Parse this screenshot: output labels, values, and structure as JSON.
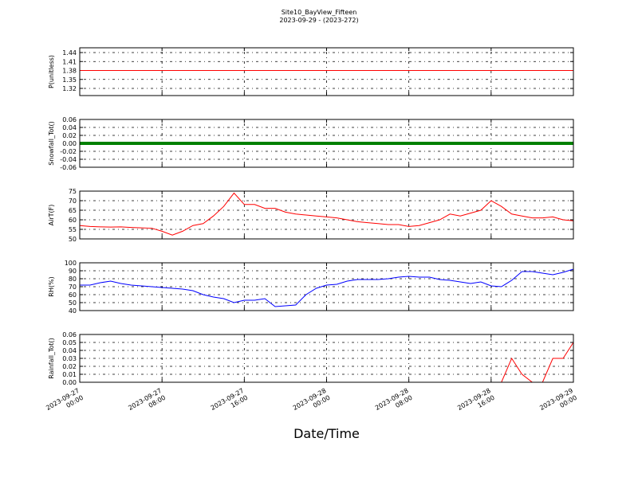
{
  "title": "Site10_BayView_Fifteen",
  "subtitle": "2023-09-29 - (2023-272)",
  "chart_data": [
    {
      "type": "line",
      "ylabel": "P(unitless)",
      "color": "#ff0000",
      "grid": true,
      "xlim": [
        "2023-09-27 00:00",
        "2023-09-29 00:00"
      ],
      "xticks": [
        "2023-09-27 00:00",
        "2023-09-27 08:00",
        "2023-09-27 16:00",
        "2023-09-28 00:00",
        "2023-09-28 08:00",
        "2023-09-28 16:00",
        "2023-09-29 00:00"
      ],
      "ylim": [
        1.296,
        1.456
      ],
      "yticks": [
        1.32,
        1.35,
        1.38,
        1.41,
        1.44
      ],
      "x": [
        "2023-09-27 00:00",
        "2023-09-29 00:00"
      ],
      "values": [
        1.38,
        1.38
      ]
    },
    {
      "type": "line",
      "ylabel": "Snowfall_Tot()",
      "color": "#008000",
      "grid": true,
      "xlim": [
        "2023-09-27 00:00",
        "2023-09-29 00:00"
      ],
      "xticks": [
        "2023-09-27 00:00",
        "2023-09-27 08:00",
        "2023-09-27 16:00",
        "2023-09-28 00:00",
        "2023-09-28 08:00",
        "2023-09-28 16:00",
        "2023-09-29 00:00"
      ],
      "ylim": [
        -0.06,
        0.06
      ],
      "yticks": [
        -0.06,
        -0.04,
        -0.02,
        0.0,
        0.02,
        0.04,
        0.06
      ],
      "x": [
        "2023-09-27 00:00",
        "2023-09-29 00:00"
      ],
      "values": [
        0,
        0
      ]
    },
    {
      "type": "line",
      "ylabel": "AirT(F)",
      "color": "#ff0000",
      "grid": true,
      "xlim": [
        "2023-09-27 00:00",
        "2023-09-29 00:00"
      ],
      "xticks": [
        "2023-09-27 00:00",
        "2023-09-27 08:00",
        "2023-09-27 16:00",
        "2023-09-28 00:00",
        "2023-09-28 08:00",
        "2023-09-28 16:00",
        "2023-09-29 00:00"
      ],
      "ylim": [
        50,
        75
      ],
      "yticks": [
        50,
        55,
        60,
        65,
        70,
        75
      ],
      "x": [
        "2023-09-27 00:00",
        "2023-09-27 01:00",
        "2023-09-27 02:00",
        "2023-09-27 03:00",
        "2023-09-27 04:00",
        "2023-09-27 05:00",
        "2023-09-27 06:00",
        "2023-09-27 07:00",
        "2023-09-27 08:00",
        "2023-09-27 09:00",
        "2023-09-27 10:00",
        "2023-09-27 11:00",
        "2023-09-27 12:00",
        "2023-09-27 13:00",
        "2023-09-27 14:00",
        "2023-09-27 15:00",
        "2023-09-27 16:00",
        "2023-09-27 17:00",
        "2023-09-27 18:00",
        "2023-09-27 19:00",
        "2023-09-27 20:00",
        "2023-09-27 21:00",
        "2023-09-27 22:00",
        "2023-09-27 23:00",
        "2023-09-28 00:00",
        "2023-09-28 01:00",
        "2023-09-28 02:00",
        "2023-09-28 03:00",
        "2023-09-28 04:00",
        "2023-09-28 05:00",
        "2023-09-28 06:00",
        "2023-09-28 07:00",
        "2023-09-28 08:00",
        "2023-09-28 09:00",
        "2023-09-28 10:00",
        "2023-09-28 11:00",
        "2023-09-28 12:00",
        "2023-09-28 13:00",
        "2023-09-28 14:00",
        "2023-09-28 15:00",
        "2023-09-28 16:00",
        "2023-09-28 17:00",
        "2023-09-28 18:00",
        "2023-09-28 19:00",
        "2023-09-28 20:00",
        "2023-09-28 21:00",
        "2023-09-28 22:00",
        "2023-09-28 23:00",
        "2023-09-29 00:00"
      ],
      "values": [
        57,
        56.5,
        56.3,
        56.2,
        56.3,
        56,
        55.8,
        55.6,
        54,
        52,
        54,
        57,
        58,
        62,
        67,
        74,
        68,
        68,
        66,
        66,
        64,
        63,
        62.5,
        62,
        61.5,
        61,
        60,
        59,
        58.5,
        58,
        57.5,
        57.5,
        56.5,
        57,
        58.5,
        60,
        63,
        62,
        63.5,
        65,
        70,
        67,
        63,
        62,
        61,
        61,
        61.5,
        60,
        59.5
      ]
    },
    {
      "type": "line",
      "ylabel": "RH(%)",
      "color": "#0000ff",
      "grid": true,
      "xlim": [
        "2023-09-27 00:00",
        "2023-09-29 00:00"
      ],
      "xticks": [
        "2023-09-27 00:00",
        "2023-09-27 08:00",
        "2023-09-27 16:00",
        "2023-09-28 00:00",
        "2023-09-28 08:00",
        "2023-09-28 16:00",
        "2023-09-29 00:00"
      ],
      "ylim": [
        40,
        100
      ],
      "yticks": [
        40,
        50,
        60,
        70,
        80,
        90,
        100
      ],
      "x": [
        "2023-09-27 00:00",
        "2023-09-27 01:00",
        "2023-09-27 02:00",
        "2023-09-27 03:00",
        "2023-09-27 04:00",
        "2023-09-27 05:00",
        "2023-09-27 06:00",
        "2023-09-27 07:00",
        "2023-09-27 08:00",
        "2023-09-27 09:00",
        "2023-09-27 10:00",
        "2023-09-27 11:00",
        "2023-09-27 12:00",
        "2023-09-27 13:00",
        "2023-09-27 14:00",
        "2023-09-27 15:00",
        "2023-09-27 16:00",
        "2023-09-27 17:00",
        "2023-09-27 18:00",
        "2023-09-27 19:00",
        "2023-09-27 20:00",
        "2023-09-27 21:00",
        "2023-09-27 22:00",
        "2023-09-27 23:00",
        "2023-09-28 00:00",
        "2023-09-28 01:00",
        "2023-09-28 02:00",
        "2023-09-28 03:00",
        "2023-09-28 04:00",
        "2023-09-28 05:00",
        "2023-09-28 06:00",
        "2023-09-28 07:00",
        "2023-09-28 08:00",
        "2023-09-28 09:00",
        "2023-09-28 10:00",
        "2023-09-28 11:00",
        "2023-09-28 12:00",
        "2023-09-28 13:00",
        "2023-09-28 14:00",
        "2023-09-28 15:00",
        "2023-09-28 16:00",
        "2023-09-28 17:00",
        "2023-09-28 18:00",
        "2023-09-28 19:00",
        "2023-09-28 20:00",
        "2023-09-28 21:00",
        "2023-09-28 22:00",
        "2023-09-28 23:00",
        "2023-09-29 00:00"
      ],
      "values": [
        72,
        72,
        75,
        77,
        74,
        72,
        71,
        70,
        69,
        68,
        67,
        65,
        60,
        57,
        55,
        50,
        53,
        53,
        55,
        45,
        46,
        47,
        60,
        68,
        72,
        73,
        77,
        79,
        79,
        79,
        80,
        82,
        83,
        82,
        82,
        79,
        78,
        76,
        74,
        76,
        71,
        70,
        78,
        89,
        89,
        87,
        85,
        88,
        92
      ]
    },
    {
      "type": "line",
      "ylabel": "Rainfall_Tot()",
      "xlabel": "Date/Time",
      "color": "#ff0000",
      "grid": true,
      "xlim": [
        "2023-09-27 00:00",
        "2023-09-29 00:00"
      ],
      "xticks": [
        "2023-09-27 00:00",
        "2023-09-27 08:00",
        "2023-09-27 16:00",
        "2023-09-28 00:00",
        "2023-09-28 08:00",
        "2023-09-28 16:00",
        "2023-09-29 00:00"
      ],
      "ylim": [
        0,
        0.06
      ],
      "yticks": [
        0.0,
        0.01,
        0.02,
        0.03,
        0.04,
        0.05,
        0.06
      ],
      "x": [
        "2023-09-27 00:00",
        "2023-09-28 17:00",
        "2023-09-28 18:00",
        "2023-09-28 19:00",
        "2023-09-28 20:00",
        "2023-09-28 21:00",
        "2023-09-28 22:00",
        "2023-09-28 23:00",
        "2023-09-29 00:00"
      ],
      "values": [
        0,
        0,
        0.03,
        0.01,
        0,
        0,
        0.03,
        0.03,
        0.05
      ]
    }
  ]
}
